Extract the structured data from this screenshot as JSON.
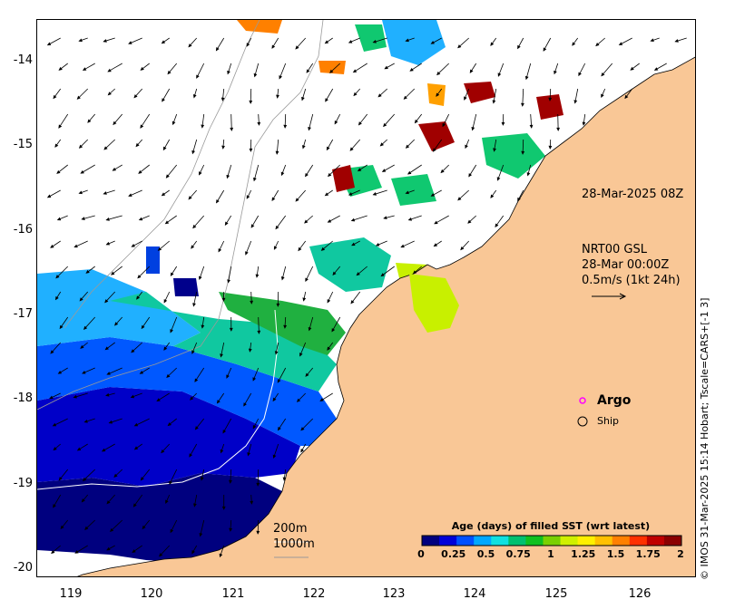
{
  "map": {
    "x_ticks": [
      "119",
      "120",
      "121",
      "122",
      "123",
      "124",
      "125",
      "126"
    ],
    "y_ticks": [
      "-14",
      "-15",
      "-16",
      "-17",
      "-18",
      "-19",
      "-20"
    ],
    "timestamp_label": "28-Mar-2025 08Z",
    "current_title": "NRT00 GSL",
    "current_date": "28-Mar 00:00Z",
    "current_scale": "0.5m/s (1kt 24h)",
    "isobath_200": "200m",
    "isobath_1000": "1000m",
    "legend_argo": "Argo",
    "legend_ship": "Ship",
    "credit": "© IMOS 31-Mar-2025 15:14 Hobart; Tscale=CARS+[-1 3]"
  },
  "colorbar": {
    "title": "Age (days) of filled SST (wrt latest)",
    "labels": [
      "0",
      "0.25",
      "0.5",
      "0.75",
      "1",
      "1.25",
      "1.5",
      "1.75",
      "2"
    ],
    "colors": [
      "#00007f",
      "#0000d8",
      "#0050ff",
      "#00a8ff",
      "#10e0e0",
      "#00c070",
      "#10c020",
      "#7ad000",
      "#d0f000",
      "#fff000",
      "#ffc000",
      "#ff8000",
      "#ff3000",
      "#c00000",
      "#8b0000"
    ]
  },
  "colors": {
    "land": "#f9c796",
    "argo_marker": "#ff00ff"
  }
}
